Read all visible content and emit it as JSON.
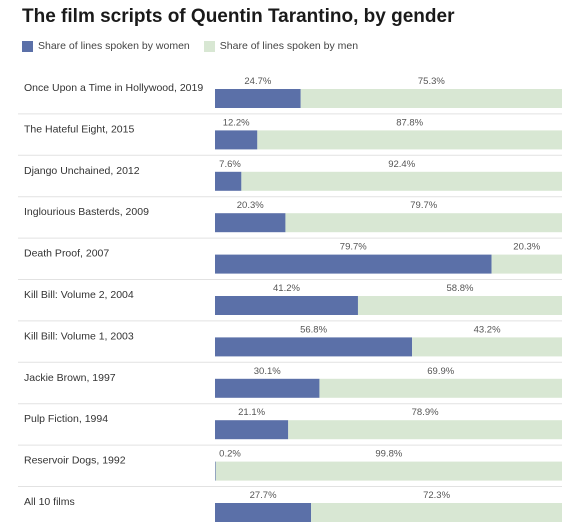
{
  "chart_data": {
    "type": "bar",
    "stacked": true,
    "orientation": "horizontal",
    "title": "The film scripts of Quentin Tarantino, by gender",
    "xlim": [
      0,
      100
    ],
    "grid": false,
    "legend_position": "top-left",
    "categories": [
      "Once Upon a Time in Hollywood, 2019",
      "The Hateful Eight, 2015",
      "Django Unchained, 2012",
      "Inglourious Basterds, 2009",
      "Death Proof, 2007",
      "Kill Bill: Volume 2, 2004",
      "Kill Bill: Volume 1, 2003",
      "Jackie Brown, 1997",
      "Pulp Fiction, 1994",
      "Reservoir Dogs, 1992",
      "All 10 films"
    ],
    "series": [
      {
        "name": "Share of lines spoken by women",
        "color": "#5b70a8",
        "values": [
          24.7,
          12.2,
          7.6,
          20.3,
          79.7,
          41.2,
          56.8,
          30.1,
          21.1,
          0.2,
          27.7
        ],
        "labels": [
          "24.7%",
          "12.2%",
          "7.6%",
          "20.3%",
          "79.7%",
          "41.2%",
          "56.8%",
          "30.1%",
          "21.1%",
          "0.2%",
          "27.7%"
        ]
      },
      {
        "name": "Share of lines spoken by men",
        "color": "#d8e7d3",
        "values": [
          75.3,
          87.8,
          92.4,
          79.7,
          20.3,
          58.8,
          43.2,
          69.9,
          78.9,
          99.8,
          72.3
        ],
        "labels": [
          "75.3%",
          "87.8%",
          "92.4%",
          "79.7%",
          "20.3%",
          "58.8%",
          "43.2%",
          "69.9%",
          "78.9%",
          "99.8%",
          "72.3%"
        ]
      }
    ]
  }
}
